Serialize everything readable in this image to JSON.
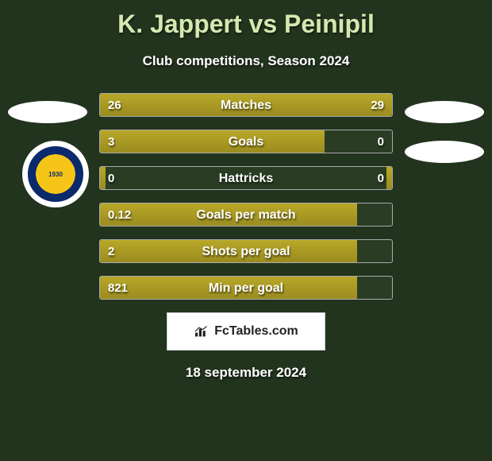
{
  "title": "K. Jappert vs Peinipil",
  "subtitle": "Club competitions, Season 2024",
  "colors": {
    "background": "#22331e",
    "title": "#d4e8b0",
    "text": "#ffffff",
    "bar_fill": "#a89524",
    "bar_border": "#aaaaaa",
    "bar_bg": "#2a3d24",
    "logo_bg": "#ffffff"
  },
  "club_badge": {
    "outer_ring": "#0a2a6b",
    "inner_fill": "#f5c518",
    "year": "1930",
    "text_top": "ΑΘΛΗΤΙΚΗ ΕΝΩΣΗ ΛΕΜΕΣΟΥ"
  },
  "stats": [
    {
      "label": "Matches",
      "left_val": "26",
      "right_val": "29",
      "left_pct": 47,
      "right_pct": 53
    },
    {
      "label": "Goals",
      "left_val": "3",
      "right_val": "0",
      "left_pct": 77,
      "right_pct": 0
    },
    {
      "label": "Hattricks",
      "left_val": "0",
      "right_val": "0",
      "left_pct": 2,
      "right_pct": 2
    },
    {
      "label": "Goals per match",
      "left_val": "0.12",
      "right_val": "",
      "left_pct": 88,
      "right_pct": 0
    },
    {
      "label": "Shots per goal",
      "left_val": "2",
      "right_val": "",
      "left_pct": 88,
      "right_pct": 0
    },
    {
      "label": "Min per goal",
      "left_val": "821",
      "right_val": "",
      "left_pct": 88,
      "right_pct": 0
    }
  ],
  "logo": {
    "text": "FcTables.com"
  },
  "date": "18 september 2024"
}
